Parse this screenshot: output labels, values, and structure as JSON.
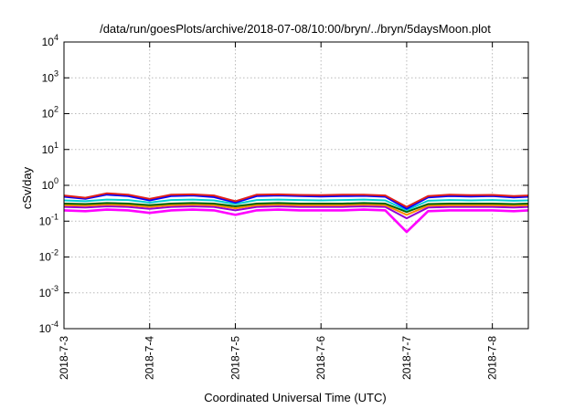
{
  "chart_data": {
    "type": "line",
    "title": "/data/run/goesPlots/archive/2018-07-08/10:00/bryn/../bryn/5daysMoon.plot",
    "xlabel": "Coordinated Universal Time (UTC)",
    "ylabel": "cSv/day",
    "y_scale": "log",
    "ylim": [
      0.0001,
      10000
    ],
    "xlim": [
      "2018-07-03 00:00",
      "2018-07-08 10:00"
    ],
    "grid": true,
    "legend": "none",
    "x_ticks": [
      "2018-7-3",
      "2018-7-4",
      "2018-7-5",
      "2018-7-6",
      "2018-7-7",
      "2018-7-8"
    ],
    "y_ticks": [
      {
        "base": "10",
        "exp": "-4",
        "value": 0.0001
      },
      {
        "base": "10",
        "exp": "-3",
        "value": 0.001
      },
      {
        "base": "10",
        "exp": "-2",
        "value": 0.01
      },
      {
        "base": "10",
        "exp": "-1",
        "value": 0.1
      },
      {
        "base": "10",
        "exp": "0",
        "value": 1
      },
      {
        "base": "10",
        "exp": "1",
        "value": 10
      },
      {
        "base": "10",
        "exp": "2",
        "value": 100
      },
      {
        "base": "10",
        "exp": "3",
        "value": 1000
      },
      {
        "base": "10",
        "exp": "4",
        "value": 10000
      }
    ],
    "x_days": [
      0,
      0.25,
      0.5,
      0.75,
      1,
      1.25,
      1.5,
      1.75,
      2,
      2.25,
      2.5,
      2.75,
      3,
      3.25,
      3.5,
      3.75,
      4,
      4.25,
      4.5,
      4.75,
      5,
      5.25,
      5.42
    ],
    "series": [
      {
        "color": "#ff00ff",
        "values": [
          0.2,
          0.19,
          0.21,
          0.2,
          0.17,
          0.2,
          0.21,
          0.2,
          0.15,
          0.2,
          0.21,
          0.2,
          0.2,
          0.2,
          0.21,
          0.2,
          0.05,
          0.19,
          0.2,
          0.2,
          0.2,
          0.19,
          0.2
        ]
      },
      {
        "color": "#9400d3",
        "values": [
          0.25,
          0.24,
          0.26,
          0.25,
          0.22,
          0.25,
          0.26,
          0.25,
          0.2,
          0.25,
          0.26,
          0.25,
          0.25,
          0.25,
          0.26,
          0.25,
          0.12,
          0.24,
          0.25,
          0.25,
          0.25,
          0.24,
          0.25
        ]
      },
      {
        "color": "#ff8c00",
        "values": [
          0.28,
          0.27,
          0.29,
          0.28,
          0.25,
          0.28,
          0.29,
          0.28,
          0.23,
          0.28,
          0.29,
          0.28,
          0.28,
          0.28,
          0.29,
          0.28,
          0.15,
          0.27,
          0.28,
          0.28,
          0.28,
          0.27,
          0.28
        ]
      },
      {
        "color": "#006400",
        "values": [
          0.31,
          0.3,
          0.32,
          0.31,
          0.28,
          0.31,
          0.32,
          0.31,
          0.26,
          0.31,
          0.32,
          0.31,
          0.31,
          0.31,
          0.32,
          0.31,
          0.18,
          0.3,
          0.31,
          0.31,
          0.31,
          0.3,
          0.31
        ]
      },
      {
        "color": "#00ced1",
        "values": [
          0.38,
          0.36,
          0.4,
          0.39,
          0.33,
          0.39,
          0.4,
          0.38,
          0.3,
          0.39,
          0.4,
          0.39,
          0.38,
          0.39,
          0.4,
          0.38,
          0.2,
          0.37,
          0.39,
          0.38,
          0.39,
          0.37,
          0.38
        ]
      },
      {
        "color": "#0000ff",
        "values": [
          0.48,
          0.42,
          0.55,
          0.5,
          0.38,
          0.5,
          0.52,
          0.47,
          0.33,
          0.5,
          0.52,
          0.5,
          0.49,
          0.5,
          0.51,
          0.48,
          0.22,
          0.46,
          0.5,
          0.49,
          0.5,
          0.46,
          0.48
        ]
      },
      {
        "color": "#e0201b",
        "values": [
          0.52,
          0.45,
          0.6,
          0.55,
          0.42,
          0.55,
          0.56,
          0.52,
          0.36,
          0.55,
          0.56,
          0.54,
          0.53,
          0.55,
          0.55,
          0.52,
          0.25,
          0.5,
          0.55,
          0.53,
          0.54,
          0.5,
          0.52
        ]
      }
    ]
  }
}
